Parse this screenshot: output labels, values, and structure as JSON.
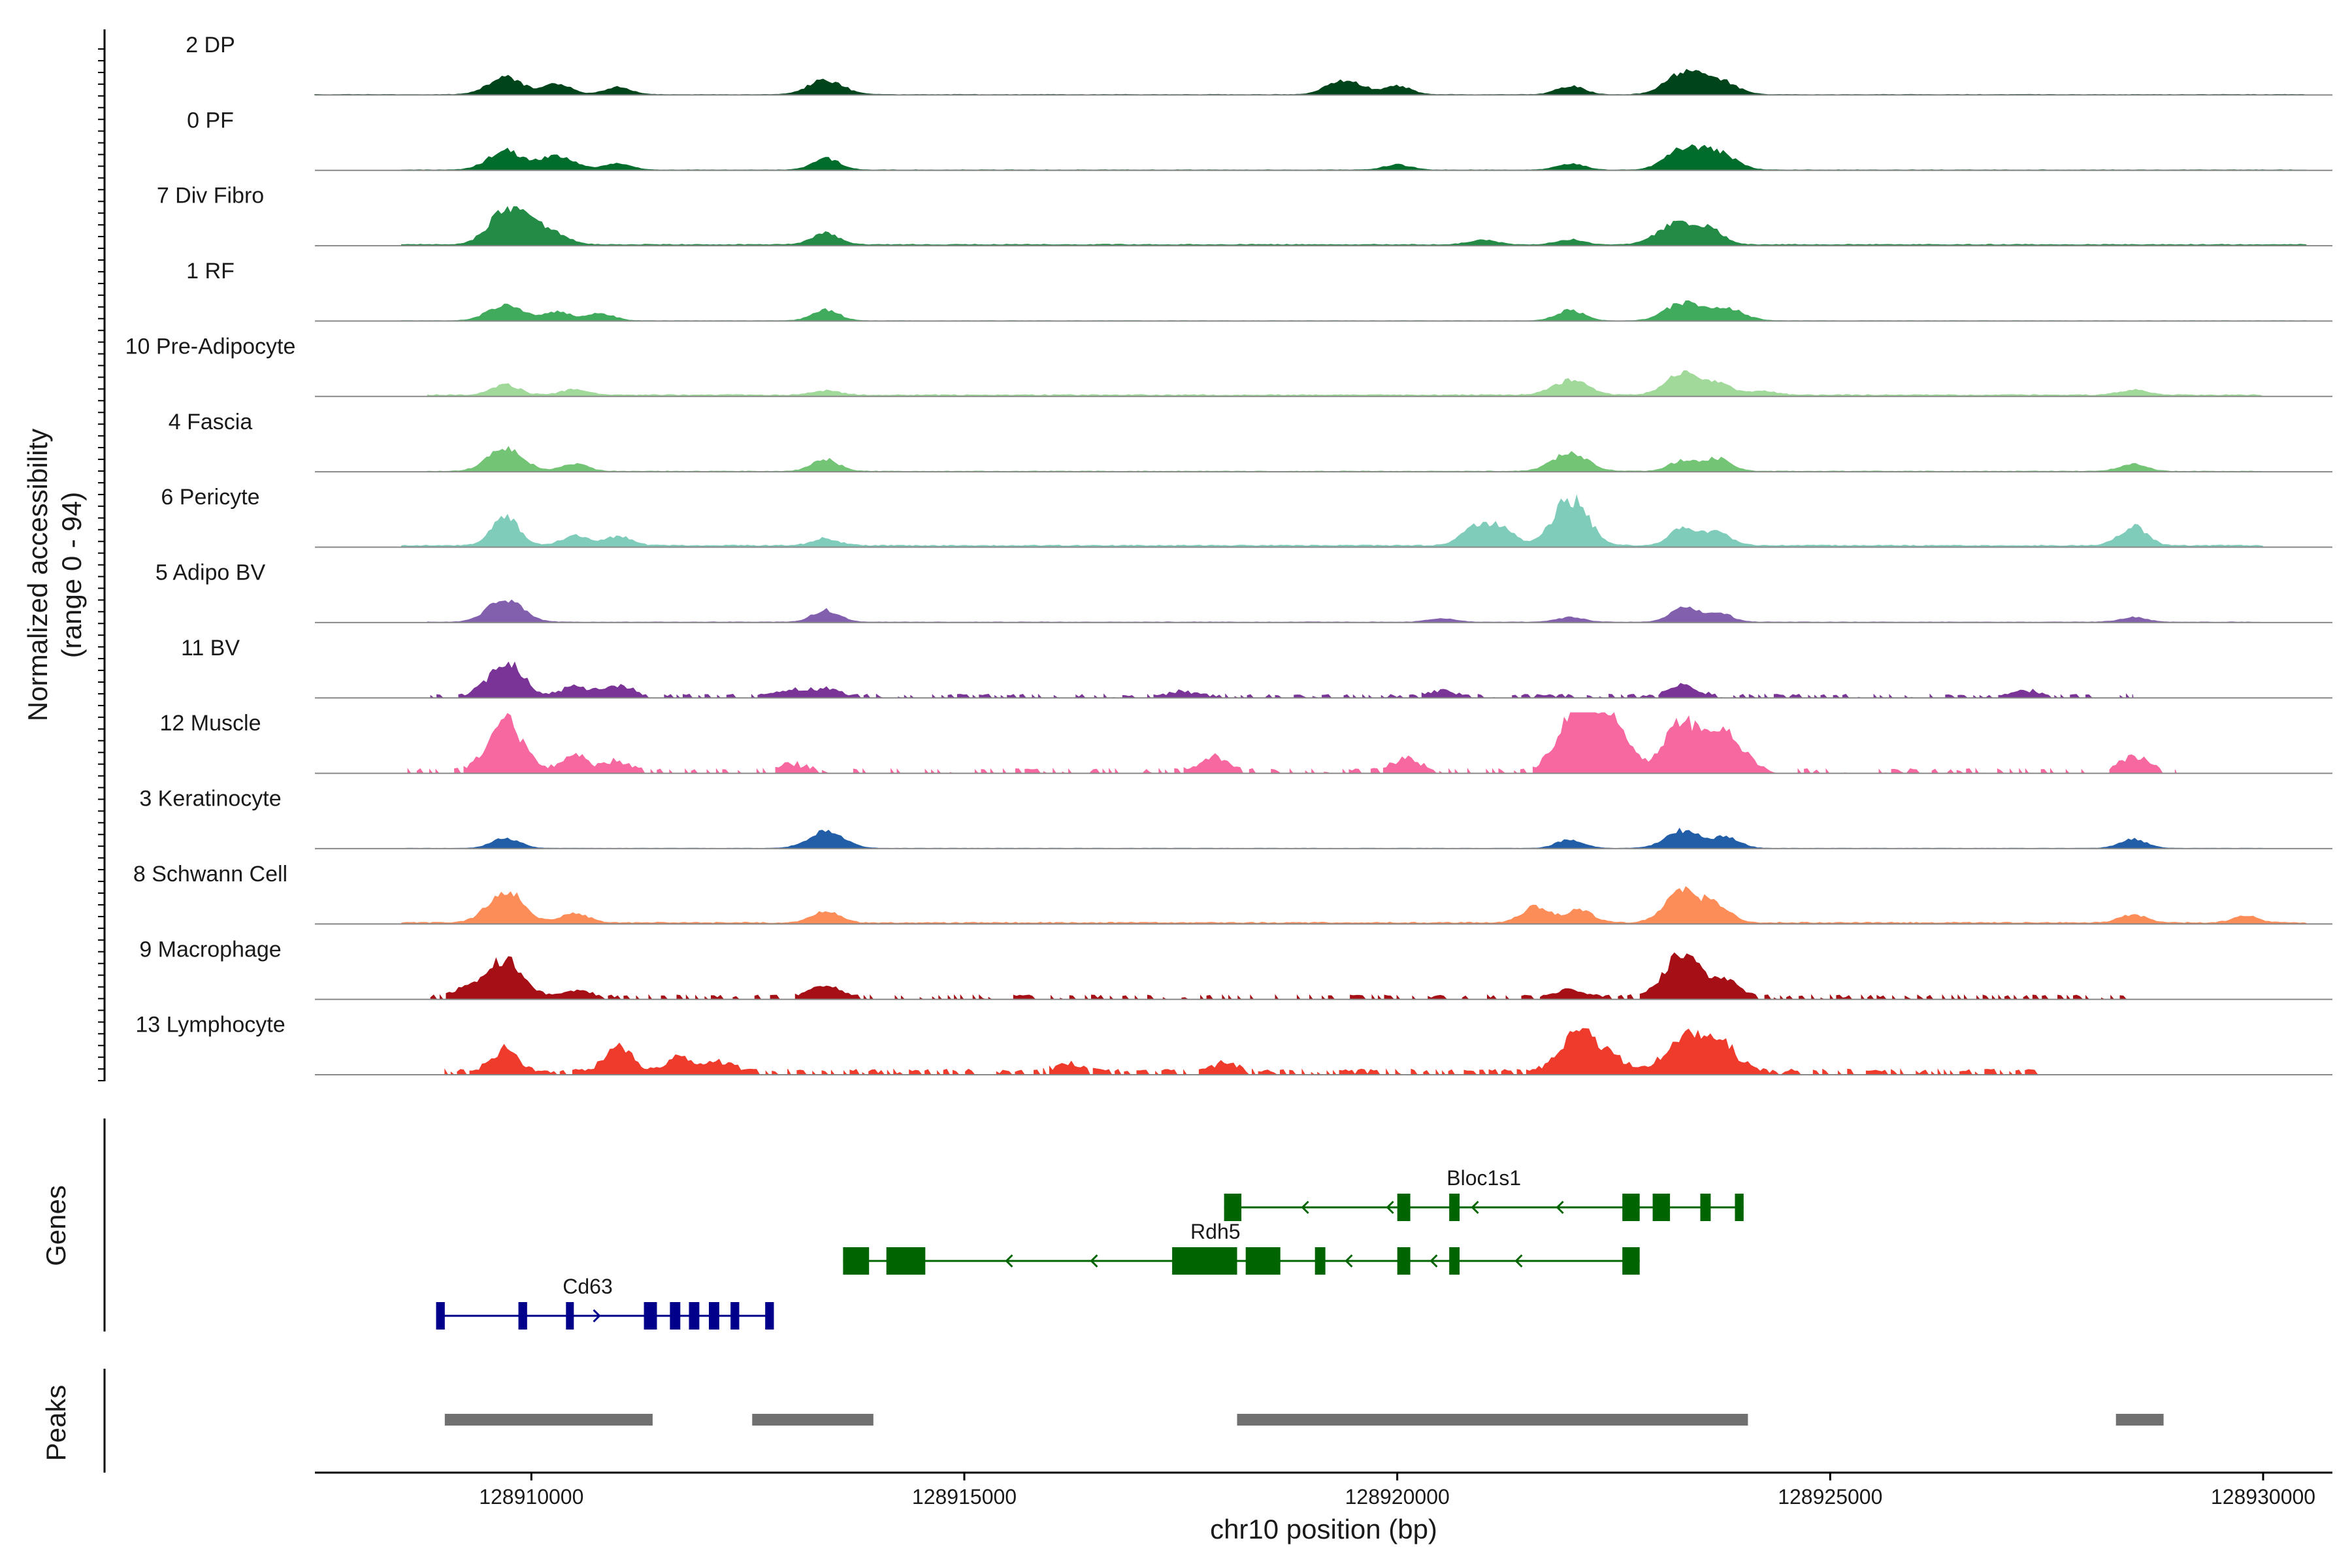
{
  "chart_data": {
    "type": "area",
    "title": "",
    "ylabel_line1": "Normalized accessibility",
    "ylabel_line2": "(range 0 - 94)",
    "yrange": [
      0,
      94
    ],
    "xlabel": "chr10 position (bp)",
    "xlim": [
      128907500,
      128930800
    ],
    "x_ticks": [
      128910000,
      128915000,
      128920000,
      128925000,
      128930000
    ],
    "x_tick_labels": [
      "128910000",
      "128915000",
      "128920000",
      "128925000",
      "128930000"
    ],
    "genes_label": "Genes",
    "peaks_label": "Peaks",
    "tracks": [
      {
        "name": "2 DP",
        "color": "#00441b",
        "data_start": 128907500,
        "data_end": 128930500,
        "max_level": 0.36,
        "base": 0.01,
        "noise": 0.015,
        "peaks": [
          [
            128909700,
            0.8
          ],
          [
            128910300,
            0.5
          ],
          [
            128911000,
            0.35
          ],
          [
            128913400,
            0.7
          ],
          [
            128919400,
            0.7
          ],
          [
            128920000,
            0.4
          ],
          [
            128922000,
            0.4
          ],
          [
            128923300,
            1.0
          ],
          [
            128923700,
            0.7
          ]
        ]
      },
      {
        "name": "0 PF",
        "color": "#006d2c",
        "data_start": 128908500,
        "data_end": 128930500,
        "max_level": 0.36,
        "base": 0.01,
        "noise": 0.015,
        "peaks": [
          [
            128909700,
            0.9
          ],
          [
            128910300,
            0.65
          ],
          [
            128911000,
            0.3
          ],
          [
            128913400,
            0.55
          ],
          [
            128920000,
            0.25
          ],
          [
            128922000,
            0.3
          ],
          [
            128923300,
            1.0
          ],
          [
            128923700,
            0.8
          ]
        ]
      },
      {
        "name": "7 Div Fibro",
        "color": "#238b45",
        "data_start": 128908500,
        "data_end": 128930500,
        "max_level": 0.55,
        "base": 0.02,
        "noise": 0.02,
        "peaks": [
          [
            128909700,
            1.0
          ],
          [
            128910000,
            0.5
          ],
          [
            128910300,
            0.3
          ],
          [
            128913400,
            0.35
          ],
          [
            128921000,
            0.15
          ],
          [
            128922000,
            0.15
          ],
          [
            128923200,
            0.65
          ],
          [
            128923600,
            0.5
          ]
        ]
      },
      {
        "name": "1 RF",
        "color": "#41ab5d",
        "data_start": 128908500,
        "data_end": 128930500,
        "max_level": 0.3,
        "base": 0.01,
        "noise": 0.015,
        "peaks": [
          [
            128909700,
            0.9
          ],
          [
            128910300,
            0.5
          ],
          [
            128910800,
            0.4
          ],
          [
            128913400,
            0.6
          ],
          [
            128922000,
            0.6
          ],
          [
            128923300,
            1.0
          ],
          [
            128923800,
            0.7
          ]
        ]
      },
      {
        "name": "10 Pre-Adipocyte",
        "color": "#a1d99b",
        "data_start": 128908800,
        "data_end": 128930000,
        "max_level": 0.36,
        "base": 0.04,
        "noise": 0.04,
        "peaks": [
          [
            128909700,
            0.5
          ],
          [
            128910500,
            0.25
          ],
          [
            128913400,
            0.2
          ],
          [
            128922000,
            0.7
          ],
          [
            128923300,
            1.0
          ],
          [
            128923700,
            0.5
          ],
          [
            128924200,
            0.2
          ],
          [
            128928500,
            0.25
          ]
        ]
      },
      {
        "name": "4 Fascia",
        "color": "#74c476",
        "data_start": 128908800,
        "data_end": 128930000,
        "max_level": 0.4,
        "base": 0.01,
        "noise": 0.02,
        "peaks": [
          [
            128909700,
            1.0
          ],
          [
            128910500,
            0.3
          ],
          [
            128913400,
            0.5
          ],
          [
            128922000,
            0.8
          ],
          [
            128923300,
            0.45
          ],
          [
            128923700,
            0.55
          ],
          [
            128928500,
            0.3
          ]
        ]
      },
      {
        "name": "6 Pericyte",
        "color": "#7fccbb",
        "data_start": 128908500,
        "data_end": 128930000,
        "max_level": 0.8,
        "base": 0.02,
        "noise": 0.02,
        "peaks": [
          [
            128909700,
            0.6
          ],
          [
            128910500,
            0.2
          ],
          [
            128911000,
            0.2
          ],
          [
            128913400,
            0.15
          ],
          [
            128920900,
            0.4
          ],
          [
            128921200,
            0.35
          ],
          [
            128922000,
            1.0
          ],
          [
            128923300,
            0.35
          ],
          [
            128923700,
            0.3
          ],
          [
            128928500,
            0.4
          ]
        ]
      },
      {
        "name": "5 Adipo BV",
        "color": "#8360ae",
        "data_start": 128908800,
        "data_end": 128930000,
        "max_level": 0.4,
        "base": 0.01,
        "noise": 0.015,
        "peaks": [
          [
            128909700,
            1.0
          ],
          [
            128913400,
            0.5
          ],
          [
            128920500,
            0.15
          ],
          [
            128922000,
            0.2
          ],
          [
            128923300,
            0.6
          ],
          [
            128923700,
            0.4
          ],
          [
            128928500,
            0.2
          ]
        ]
      },
      {
        "name": "11 BV",
        "color": "#7a3396",
        "data_start": 128908800,
        "data_end": 128928500,
        "max_level": 0.55,
        "base": 0.0,
        "noise": 0.1,
        "gappy": true,
        "peaks": [
          [
            128909700,
            1.0
          ],
          [
            128910500,
            0.3
          ],
          [
            128911000,
            0.35
          ],
          [
            128913000,
            0.2
          ],
          [
            128913400,
            0.25
          ],
          [
            128917500,
            0.15
          ],
          [
            128920500,
            0.15
          ],
          [
            128923300,
            0.4
          ],
          [
            128927300,
            0.15
          ]
        ]
      },
      {
        "name": "12 Muscle",
        "color": "#f768a1",
        "data_start": 128908500,
        "data_end": 128929000,
        "max_level": 0.85,
        "base": 0.0,
        "noise": 0.08,
        "gappy": true,
        "peaks": [
          [
            128909700,
            1.0
          ],
          [
            128910500,
            0.3
          ],
          [
            128911000,
            0.2
          ],
          [
            128913000,
            0.15
          ],
          [
            128917900,
            0.3
          ],
          [
            128920100,
            0.25
          ],
          [
            128922000,
            0.65
          ],
          [
            128922200,
            0.9
          ],
          [
            128922500,
            0.75
          ],
          [
            128923300,
            1.0
          ],
          [
            128923800,
            0.75
          ],
          [
            128928500,
            0.3
          ]
        ]
      },
      {
        "name": "3 Keratinocyte",
        "color": "#225ea8",
        "data_start": 128908500,
        "data_end": 128930000,
        "max_level": 0.3,
        "base": 0.01,
        "noise": 0.015,
        "peaks": [
          [
            128909700,
            0.6
          ],
          [
            128913400,
            1.0
          ],
          [
            128922000,
            0.5
          ],
          [
            128923300,
            1.0
          ],
          [
            128923800,
            0.6
          ],
          [
            128928500,
            0.5
          ]
        ]
      },
      {
        "name": "8 Schwann Cell",
        "color": "#fc8d59",
        "data_start": 128908500,
        "data_end": 128930500,
        "max_level": 0.55,
        "base": 0.02,
        "noise": 0.03,
        "peaks": [
          [
            128909700,
            1.0
          ],
          [
            128910500,
            0.3
          ],
          [
            128913400,
            0.35
          ],
          [
            128921600,
            0.5
          ],
          [
            128922100,
            0.4
          ],
          [
            128923300,
            1.0
          ],
          [
            128923700,
            0.5
          ],
          [
            128928500,
            0.25
          ],
          [
            128929800,
            0.2
          ]
        ]
      },
      {
        "name": "9 Macrophage",
        "color": "#a50f15",
        "data_start": 128908800,
        "data_end": 128928500,
        "max_level": 0.8,
        "base": 0.02,
        "noise": 0.06,
        "gappy": true,
        "peaks": [
          [
            128909700,
            0.8
          ],
          [
            128909300,
            0.2
          ],
          [
            128910500,
            0.15
          ],
          [
            128913400,
            0.25
          ],
          [
            128922000,
            0.15
          ],
          [
            128923300,
            1.0
          ],
          [
            128923800,
            0.35
          ]
        ]
      },
      {
        "name": "13 Lymphocyte",
        "color": "#ef3b2c",
        "data_start": 128909000,
        "data_end": 128927500,
        "max_level": 0.7,
        "base": 0.0,
        "noise": 0.12,
        "gappy": true,
        "peaks": [
          [
            128909700,
            0.55
          ],
          [
            128911000,
            0.6
          ],
          [
            128911700,
            0.4
          ],
          [
            128912200,
            0.25
          ],
          [
            128916200,
            0.2
          ],
          [
            128918000,
            0.2
          ],
          [
            128922100,
            1.0
          ],
          [
            128922500,
            0.3
          ],
          [
            128923300,
            0.8
          ],
          [
            128923700,
            0.75
          ]
        ]
      }
    ],
    "genes": [
      {
        "name": "Bloc1s1",
        "strand": "-",
        "color": "#006400",
        "row": 0,
        "start": 128918000,
        "end": 128924000,
        "label_x": 128921000,
        "exons": [
          [
            128918000,
            128918200
          ],
          [
            128920000,
            128920150
          ],
          [
            128920600,
            128920720
          ],
          [
            128922600,
            128922800
          ],
          [
            128922950,
            128923150
          ],
          [
            128923500,
            128923620
          ],
          [
            128923900,
            128924000
          ]
        ]
      },
      {
        "name": "Rdh5",
        "strand": "-",
        "color": "#006400",
        "row": 1,
        "start": 128913600,
        "end": 128922800,
        "label_x": 128917900,
        "exons": [
          [
            128913600,
            128913900
          ],
          [
            128914100,
            128914550
          ],
          [
            128917400,
            128918150
          ],
          [
            128918250,
            128918650
          ],
          [
            128919050,
            128919170
          ],
          [
            128920000,
            128920150
          ],
          [
            128920600,
            128920720
          ],
          [
            128922600,
            128922800
          ]
        ]
      },
      {
        "name": "Cd63",
        "strand": "+",
        "color": "#00008b",
        "row": 2,
        "start": 128908900,
        "end": 128912800,
        "label_x": 128910650,
        "exons": [
          [
            128908900,
            128909000
          ],
          [
            128909850,
            128909950
          ],
          [
            128910400,
            128910470
          ],
          [
            128911300,
            128911450
          ],
          [
            128911600,
            128911720
          ],
          [
            128911820,
            128911940
          ],
          [
            128912050,
            128912170
          ],
          [
            128912300,
            128912400
          ],
          [
            128912700,
            128912800
          ]
        ]
      }
    ],
    "peaks": [
      [
        128909000,
        128911400
      ],
      [
        128912550,
        128913950
      ],
      [
        128918150,
        128924050
      ],
      [
        128928300,
        128928850
      ]
    ]
  }
}
